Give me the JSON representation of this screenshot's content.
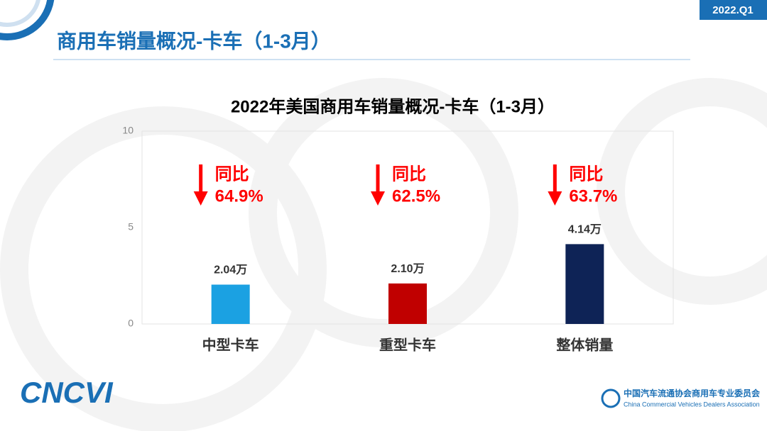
{
  "header": {
    "title": "商用车销量概况-卡车（1-3月）",
    "badge": "2022.Q1"
  },
  "chart_data": {
    "type": "bar",
    "title": "2022年美国商用车销量概况-卡车（1-3月）",
    "categories": [
      "中型卡车",
      "重型卡车",
      "整体销量"
    ],
    "values": [
      2.04,
      2.1,
      4.14
    ],
    "value_labels": [
      "2.04万",
      "2.10万",
      "4.14万"
    ],
    "colors": [
      "#1ba1e2",
      "#c00000",
      "#0e2356"
    ],
    "ylim": [
      0,
      10
    ],
    "yticks": [
      0,
      5,
      10
    ],
    "grid": false,
    "annotations": [
      {
        "label": "同比",
        "change": "64.9%"
      },
      {
        "label": "同比",
        "change": "62.5%"
      },
      {
        "label": "同比",
        "change": "63.7%"
      }
    ],
    "annotation_color": "#ff0000"
  },
  "footer": {
    "logo": "CNCVI",
    "org_name": "中国汽车流通协会商用车专业委员会",
    "org_name_en": "China Commercial Vehicles Dealers Association"
  }
}
